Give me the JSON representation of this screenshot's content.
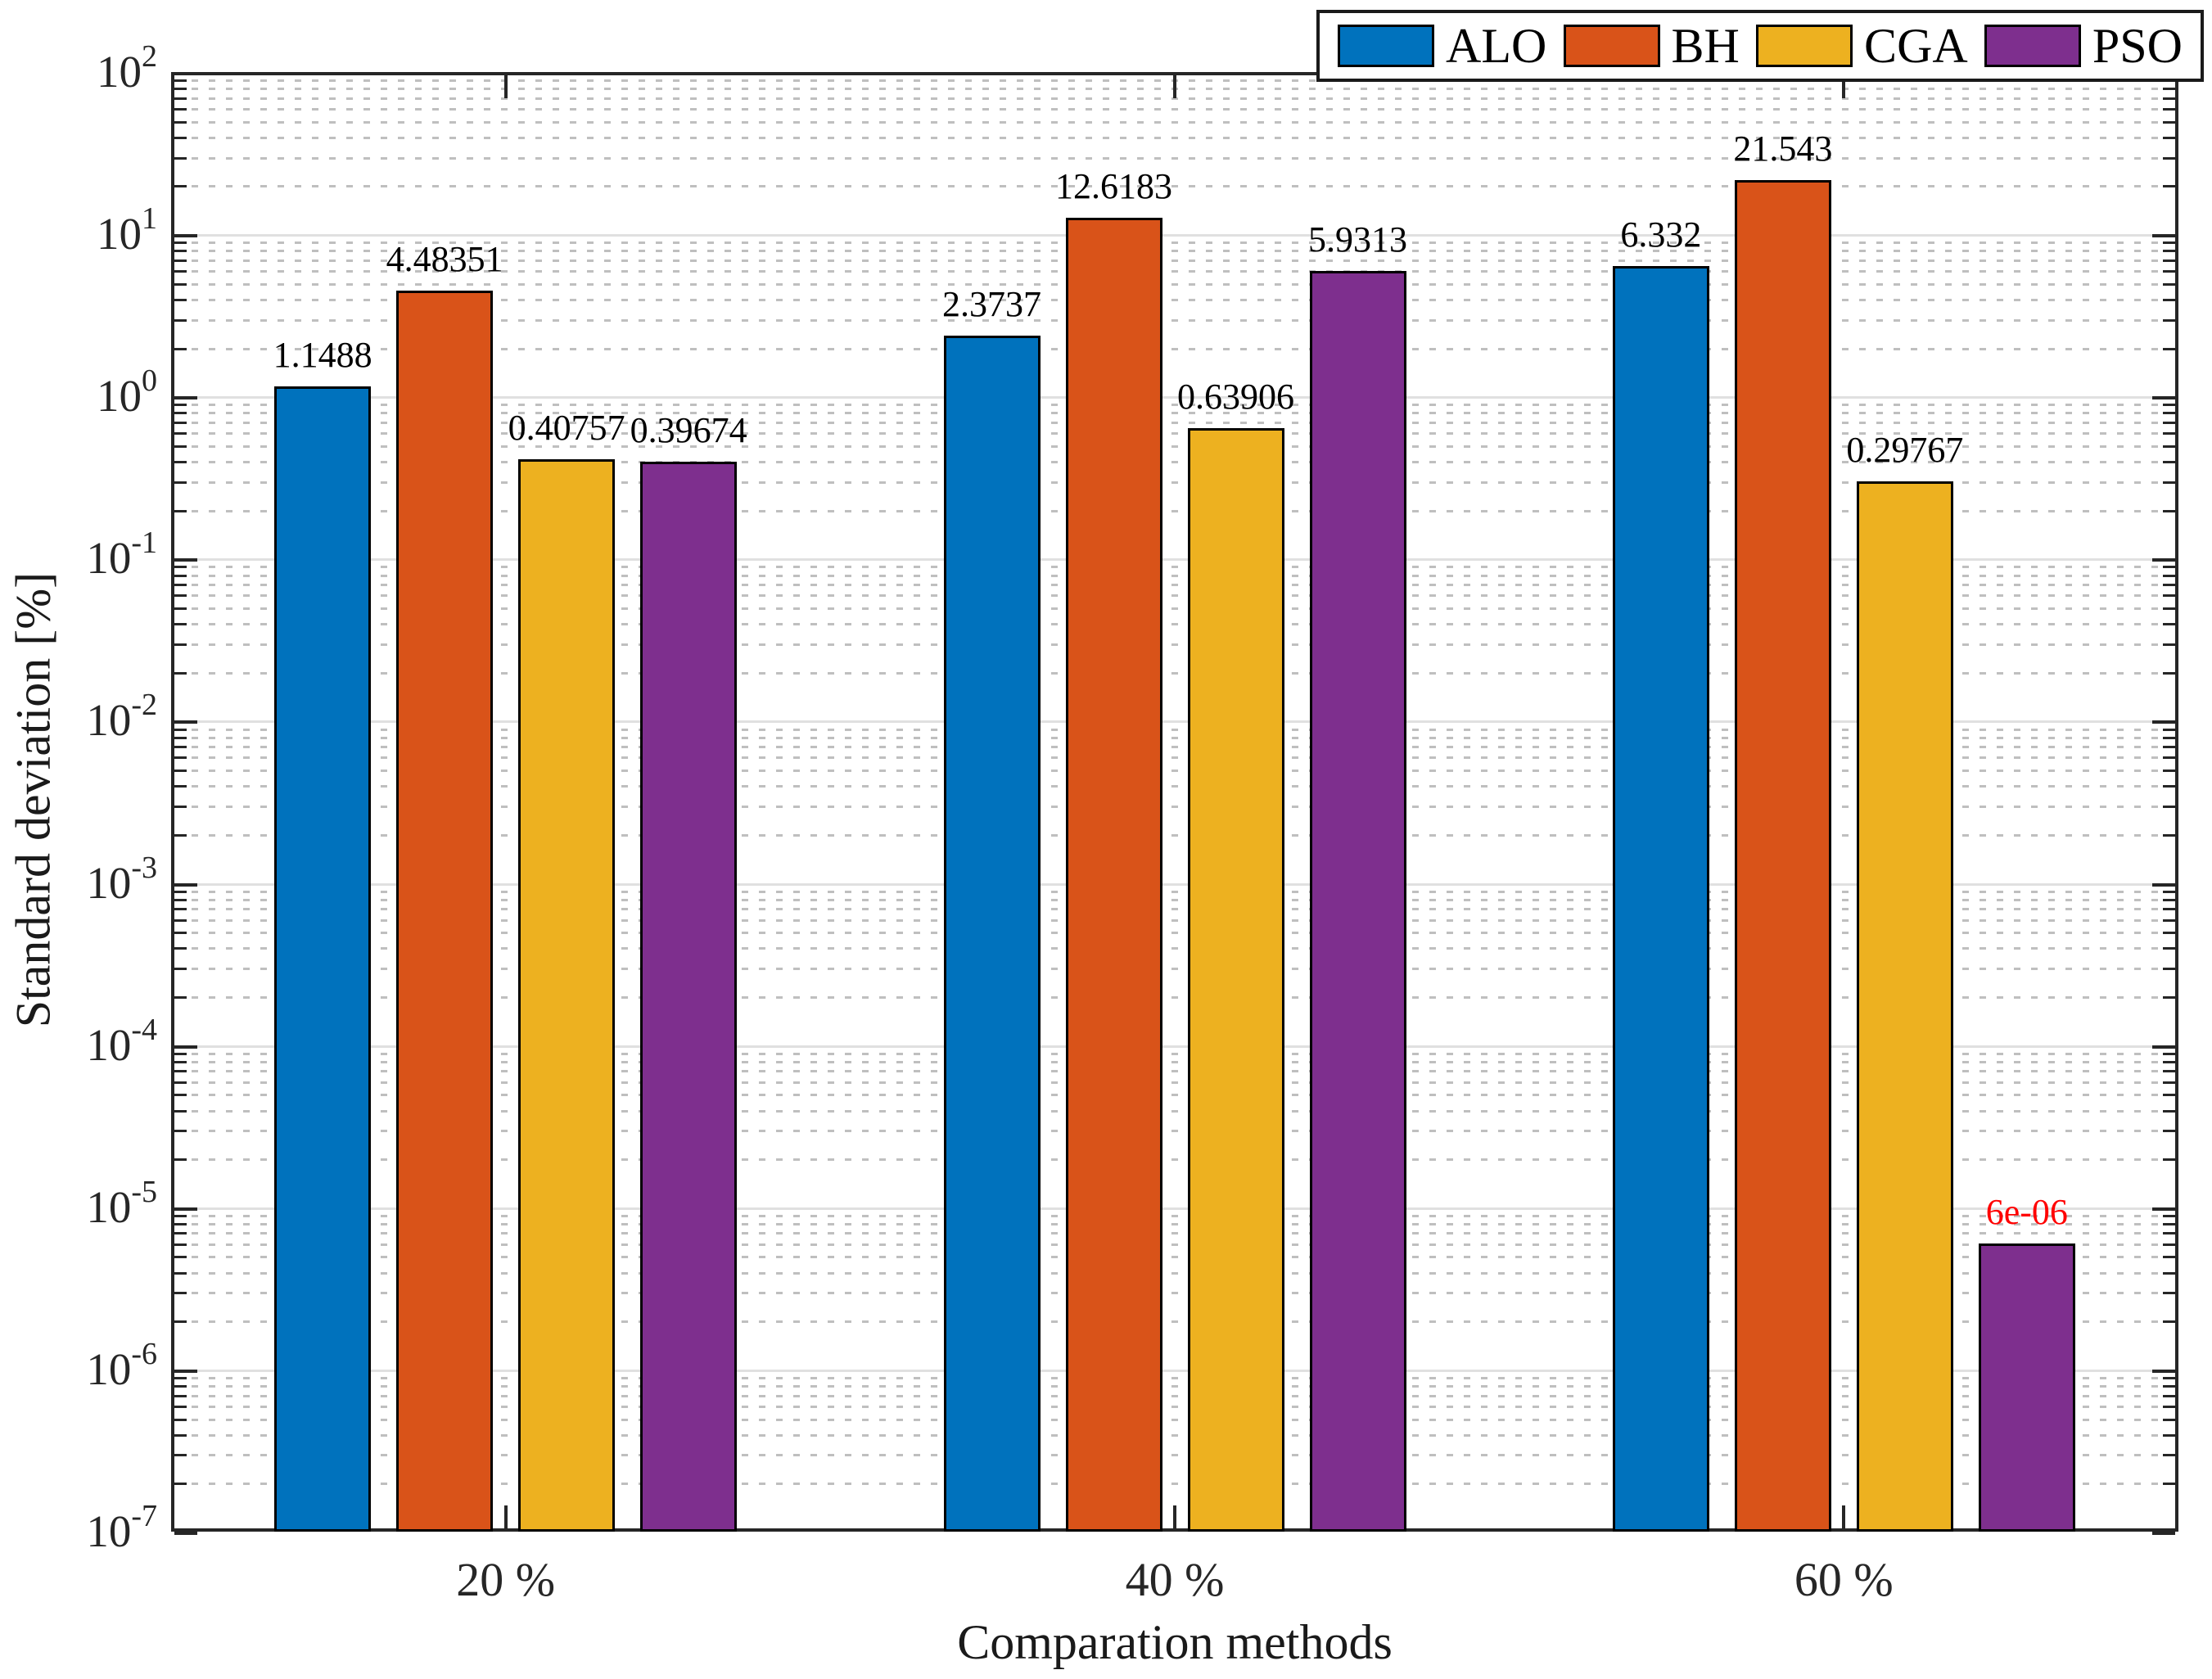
{
  "chart_data": {
    "type": "bar",
    "title": "",
    "xlabel": "Comparation methods",
    "ylabel": "Standard deviation [%]",
    "yscale": "log",
    "ylim": [
      1e-07,
      100
    ],
    "y_tick_exponents": [
      2,
      1,
      0,
      -1,
      -2,
      -3,
      -4,
      -5,
      -6,
      -7
    ],
    "categories": [
      "20 %",
      "40 %",
      "60 %"
    ],
    "series": [
      {
        "name": "ALO",
        "color": "#0072BD",
        "values": [
          1.1488,
          2.3737,
          6.332
        ],
        "labels": [
          "1.1488",
          "2.3737",
          "6.332"
        ],
        "label_colors": [
          "#000000",
          "#000000",
          "#000000"
        ]
      },
      {
        "name": "BH",
        "color": "#D95319",
        "values": [
          4.48351,
          12.6183,
          21.543
        ],
        "labels": [
          "4.48351",
          "12.6183",
          "21.543"
        ],
        "label_colors": [
          "#000000",
          "#000000",
          "#000000"
        ]
      },
      {
        "name": "CGA",
        "color": "#EDB120",
        "values": [
          0.40757,
          0.63906,
          0.29767
        ],
        "labels": [
          "0.40757",
          "0.63906",
          "0.29767"
        ],
        "label_colors": [
          "#000000",
          "#000000",
          "#000000"
        ]
      },
      {
        "name": "PSO",
        "color": "#7E2F8E",
        "values": [
          0.39674,
          5.9313,
          6e-06
        ],
        "labels": [
          "0.39674",
          "5.9313",
          "6e-06"
        ],
        "label_colors": [
          "#000000",
          "#000000",
          "#FF0000"
        ]
      }
    ],
    "legend": {
      "position": "top-right",
      "entries": [
        "ALO",
        "BH",
        "CGA",
        "PSO"
      ]
    },
    "grid": {
      "major_style": "solid",
      "minor_style": "dotted"
    }
  },
  "colors": {
    "axis": "#262626",
    "grid_major": "#e0e0e0",
    "grid_minor": "#bfbfbf",
    "bar_edge": "#000000",
    "background": "#ffffff"
  }
}
